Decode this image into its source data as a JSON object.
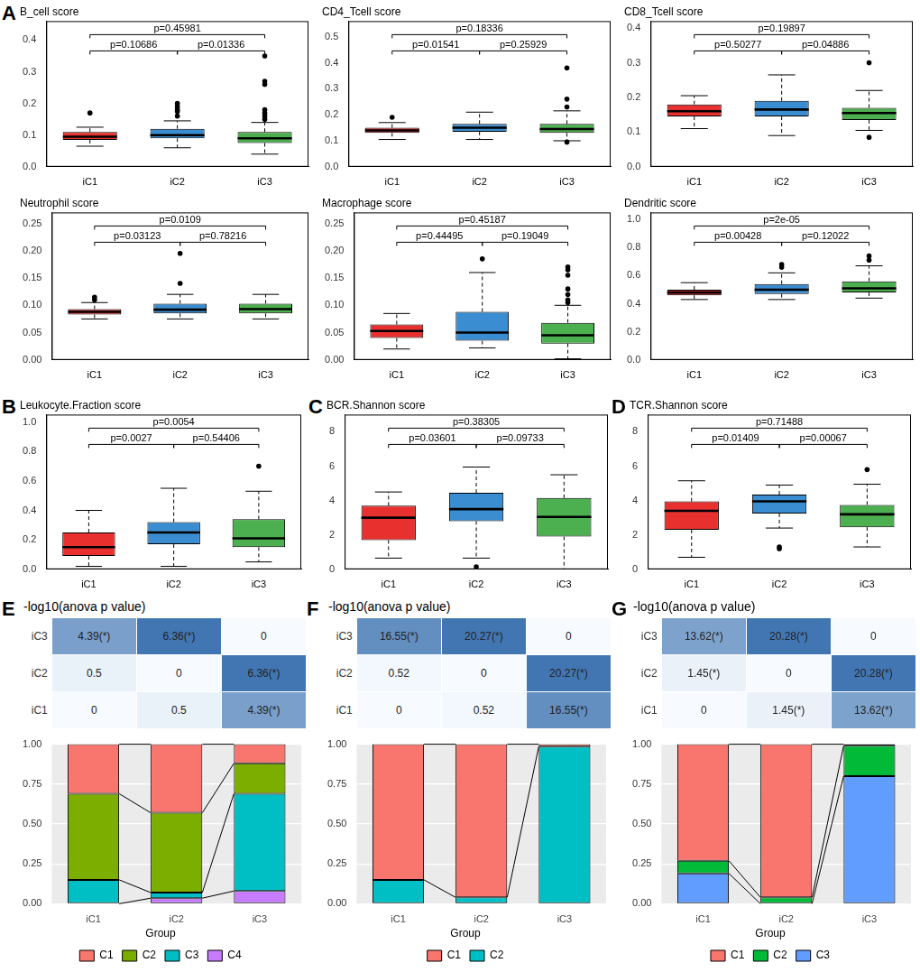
{
  "chart_data": [
    {
      "type": "boxplot",
      "panel": "A",
      "title": "B_cell score",
      "categories": [
        "iC1",
        "iC2",
        "iC3"
      ],
      "colors": [
        "#E8312F",
        "#3A8DD0",
        "#4CAF50"
      ],
      "boxes": [
        {
          "min": 0.065,
          "q1": 0.085,
          "median": 0.095,
          "q3": 0.11,
          "max": 0.125,
          "outliers": [
            0.17
          ]
        },
        {
          "min": 0.06,
          "q1": 0.09,
          "median": 0.1,
          "q3": 0.12,
          "max": 0.145,
          "outliers": [
            0.16,
            0.175,
            0.18,
            0.19,
            0.2
          ]
        },
        {
          "min": 0.04,
          "q1": 0.075,
          "median": 0.09,
          "q3": 0.11,
          "max": 0.14,
          "outliers": [
            0.15,
            0.16,
            0.17,
            0.18,
            0.26,
            0.27,
            0.35
          ]
        }
      ],
      "ylim": [
        0,
        0.46
      ],
      "yticks": [
        {
          "value": 0,
          "label": "0.0"
        },
        0.1,
        0.2,
        0.3,
        0.4
      ],
      "comparisons": [
        {
          "groups": [
            "iC1",
            "iC3"
          ],
          "label": "p=0.45981"
        },
        {
          "groups": [
            "iC1",
            "iC2"
          ],
          "label": "p=0.10686"
        },
        {
          "groups": [
            "iC2",
            "iC3"
          ],
          "label": "p=0.01336"
        }
      ]
    },
    {
      "type": "boxplot",
      "title": "CD4_Tcell score",
      "categories": [
        "iC1",
        "iC2",
        "iC3"
      ],
      "colors": [
        "#E8312F",
        "#3A8DD0",
        "#4CAF50"
      ],
      "boxes": [
        {
          "min": 0.105,
          "q1": 0.13,
          "median": 0.14,
          "q3": 0.15,
          "max": 0.17,
          "outliers": [
            0.19
          ]
        },
        {
          "min": 0.105,
          "q1": 0.135,
          "median": 0.15,
          "q3": 0.165,
          "max": 0.21,
          "outliers": []
        },
        {
          "min": 0.1,
          "q1": 0.13,
          "median": 0.145,
          "q3": 0.165,
          "max": 0.215,
          "outliers": [
            0.095,
            0.23,
            0.26,
            0.38
          ]
        }
      ],
      "ylim": [
        0,
        0.56
      ],
      "yticks": [
        {
          "value": 0,
          "label": "0.0"
        },
        0.1,
        0.2,
        0.3,
        0.4,
        0.5
      ],
      "comparisons": [
        {
          "groups": [
            "iC1",
            "iC3"
          ],
          "label": "p=0.18336"
        },
        {
          "groups": [
            "iC1",
            "iC2"
          ],
          "label": "p=0.01541"
        },
        {
          "groups": [
            "iC2",
            "iC3"
          ],
          "label": "p=0.25929"
        }
      ]
    },
    {
      "type": "boxplot",
      "title": "CD8_Tcell score",
      "categories": [
        "iC1",
        "iC2",
        "iC3"
      ],
      "colors": [
        "#E8312F",
        "#3A8DD0",
        "#4CAF50"
      ],
      "boxes": [
        {
          "min": 0.11,
          "q1": 0.145,
          "median": 0.16,
          "q3": 0.18,
          "max": 0.205,
          "outliers": []
        },
        {
          "min": 0.09,
          "q1": 0.145,
          "median": 0.165,
          "q3": 0.19,
          "max": 0.265,
          "outliers": []
        },
        {
          "min": 0.105,
          "q1": 0.135,
          "median": 0.155,
          "q3": 0.17,
          "max": 0.22,
          "outliers": [
            0.085,
            0.3
          ]
        }
      ],
      "ylim": [
        0,
        0.42
      ],
      "yticks": [
        {
          "value": 0,
          "label": "0.0"
        },
        0.1,
        0.2,
        0.3,
        0.4
      ],
      "comparisons": [
        {
          "groups": [
            "iC1",
            "iC3"
          ],
          "label": "p=0.19897"
        },
        {
          "groups": [
            "iC1",
            "iC2"
          ],
          "label": "p=0.50277"
        },
        {
          "groups": [
            "iC2",
            "iC3"
          ],
          "label": "p=0.04886"
        }
      ]
    },
    {
      "type": "boxplot",
      "title": "Neutrophil score",
      "categories": [
        "iC1",
        "iC2",
        "iC3"
      ],
      "colors": [
        "#E8312F",
        "#3A8DD0",
        "#4CAF50"
      ],
      "boxes": [
        {
          "min": 0.075,
          "q1": 0.083,
          "median": 0.088,
          "q3": 0.093,
          "max": 0.105,
          "outliers": [
            0.11,
            0.115
          ]
        },
        {
          "min": 0.075,
          "q1": 0.085,
          "median": 0.092,
          "q3": 0.103,
          "max": 0.12,
          "outliers": [
            0.14,
            0.195
          ]
        },
        {
          "min": 0.075,
          "q1": 0.085,
          "median": 0.093,
          "q3": 0.103,
          "max": 0.12,
          "outliers": []
        }
      ],
      "ylim": [
        0,
        0.27
      ],
      "yticks": [
        {
          "value": 0,
          "label": "0.00"
        },
        0.05,
        {
          "value": 0.1,
          "label": "0.10"
        },
        0.15,
        {
          "value": 0.2,
          "label": "0.20"
        },
        0.25
      ],
      "comparisons": [
        {
          "groups": [
            "iC1",
            "iC3"
          ],
          "label": "p=0.0109"
        },
        {
          "groups": [
            "iC1",
            "iC2"
          ],
          "label": "p=0.03123"
        },
        {
          "groups": [
            "iC2",
            "iC3"
          ],
          "label": "p=0.78216"
        }
      ]
    },
    {
      "type": "boxplot",
      "title": "Macrophage score",
      "categories": [
        "iC1",
        "iC2",
        "iC3"
      ],
      "colors": [
        "#E8312F",
        "#3A8DD0",
        "#4CAF50"
      ],
      "boxes": [
        {
          "min": 0.02,
          "q1": 0.04,
          "median": 0.053,
          "q3": 0.065,
          "max": 0.085,
          "outliers": []
        },
        {
          "min": 0.022,
          "q1": 0.035,
          "median": 0.05,
          "q3": 0.088,
          "max": 0.16,
          "outliers": [
            0.185
          ]
        },
        {
          "min": 0.002,
          "q1": 0.03,
          "median": 0.045,
          "q3": 0.068,
          "max": 0.1,
          "outliers": [
            0.105,
            0.11,
            0.12,
            0.13,
            0.155,
            0.165,
            0.17
          ]
        }
      ],
      "ylim": [
        0,
        0.27
      ],
      "yticks": [
        {
          "value": 0,
          "label": "0.00"
        },
        0.05,
        {
          "value": 0.1,
          "label": "0.10"
        },
        0.15,
        {
          "value": 0.2,
          "label": "0.20"
        },
        0.25
      ],
      "comparisons": [
        {
          "groups": [
            "iC1",
            "iC3"
          ],
          "label": "p=0.45187"
        },
        {
          "groups": [
            "iC1",
            "iC2"
          ],
          "label": "p=0.44495"
        },
        {
          "groups": [
            "iC2",
            "iC3"
          ],
          "label": "p=0.19049"
        }
      ]
    },
    {
      "type": "boxplot",
      "title": "Dendritic score",
      "categories": [
        "iC1",
        "iC2",
        "iC3"
      ],
      "colors": [
        "#E8312F",
        "#3A8DD0",
        "#4CAF50"
      ],
      "boxes": [
        {
          "min": 0.43,
          "q1": 0.46,
          "median": 0.48,
          "q3": 0.5,
          "max": 0.55,
          "outliers": []
        },
        {
          "min": 0.43,
          "q1": 0.47,
          "median": 0.5,
          "q3": 0.54,
          "max": 0.62,
          "outliers": [
            0.66,
            0.68
          ]
        },
        {
          "min": 0.44,
          "q1": 0.48,
          "median": 0.51,
          "q3": 0.56,
          "max": 0.67,
          "outliers": [
            0.71,
            0.74
          ]
        }
      ],
      "ylim": [
        0,
        1.05
      ],
      "yticks": [
        {
          "value": 0,
          "label": "0.0"
        },
        0.2,
        0.4,
        0.6,
        0.8,
        {
          "value": 1,
          "label": "1.0"
        }
      ],
      "comparisons": [
        {
          "groups": [
            "iC1",
            "iC3"
          ],
          "label": "p=2e-05"
        },
        {
          "groups": [
            "iC1",
            "iC2"
          ],
          "label": "p=0.00428"
        },
        {
          "groups": [
            "iC2",
            "iC3"
          ],
          "label": "p=0.12022"
        }
      ]
    },
    {
      "type": "boxplot",
      "panel": "B",
      "title": "Leukocyte.Fraction score",
      "categories": [
        "iC1",
        "iC2",
        "iC3"
      ],
      "colors": [
        "#E8312F",
        "#3A8DD0",
        "#4CAF50"
      ],
      "boxes": [
        {
          "min": 0.02,
          "q1": 0.09,
          "median": 0.15,
          "q3": 0.25,
          "max": 0.4,
          "outliers": []
        },
        {
          "min": 0.02,
          "q1": 0.17,
          "median": 0.25,
          "q3": 0.32,
          "max": 0.55,
          "outliers": []
        },
        {
          "min": 0.05,
          "q1": 0.15,
          "median": 0.21,
          "q3": 0.34,
          "max": 0.53,
          "outliers": [
            0.7
          ]
        }
      ],
      "ylim": [
        0,
        1.05
      ],
      "yticks": [
        {
          "value": 0,
          "label": "0.0"
        },
        0.2,
        0.4,
        0.6,
        0.8,
        {
          "value": 1,
          "label": "1.0"
        }
      ],
      "comparisons": [
        {
          "groups": [
            "iC1",
            "iC3"
          ],
          "label": "p=0.0054"
        },
        {
          "groups": [
            "iC1",
            "iC2"
          ],
          "label": "p=0.0027"
        },
        {
          "groups": [
            "iC2",
            "iC3"
          ],
          "label": "p=0.54406"
        }
      ]
    },
    {
      "type": "boxplot",
      "panel": "C",
      "title": "BCR.Shannon score",
      "categories": [
        "iC1",
        "iC2",
        "iC3"
      ],
      "colors": [
        "#E8312F",
        "#3A8DD0",
        "#4CAF50"
      ],
      "boxes": [
        {
          "min": 0.65,
          "q1": 1.7,
          "median": 3,
          "q3": 3.7,
          "max": 4.5,
          "outliers": []
        },
        {
          "min": 0.65,
          "q1": 2.8,
          "median": 3.5,
          "q3": 4.45,
          "max": 5.95,
          "outliers": [
            0.15
          ]
        },
        {
          "min": 0,
          "q1": 1.9,
          "median": 3.05,
          "q3": 4.15,
          "max": 5.5,
          "outliers": []
        }
      ],
      "ylim": [
        0,
        9
      ],
      "yticks": [
        0,
        2,
        4,
        6,
        8
      ],
      "comparisons": [
        {
          "groups": [
            "iC1",
            "iC3"
          ],
          "label": "p=0.38305"
        },
        {
          "groups": [
            "iC1",
            "iC2"
          ],
          "label": "p=0.03601"
        },
        {
          "groups": [
            "iC2",
            "iC3"
          ],
          "label": "p=0.09733"
        }
      ]
    },
    {
      "type": "boxplot",
      "panel": "D",
      "title": "TCR.Shannon score",
      "categories": [
        "iC1",
        "iC2",
        "iC3"
      ],
      "colors": [
        "#E8312F",
        "#3A8DD0",
        "#4CAF50"
      ],
      "boxes": [
        {
          "min": 0.7,
          "q1": 2.3,
          "median": 3.4,
          "q3": 3.95,
          "max": 5.15,
          "outliers": []
        },
        {
          "min": 2.4,
          "q1": 3.25,
          "median": 3.95,
          "q3": 4.35,
          "max": 4.9,
          "outliers": [
            1.2,
            1.3
          ]
        },
        {
          "min": 1.3,
          "q1": 2.45,
          "median": 3.2,
          "q3": 3.75,
          "max": 4.95,
          "outliers": [
            5.8
          ]
        }
      ],
      "ylim": [
        0,
        9
      ],
      "yticks": [
        0,
        2,
        4,
        6,
        8
      ],
      "comparisons": [
        {
          "groups": [
            "iC1",
            "iC3"
          ],
          "label": "p=0.71488"
        },
        {
          "groups": [
            "iC1",
            "iC2"
          ],
          "label": "p=0.01409"
        },
        {
          "groups": [
            "iC2",
            "iC3"
          ],
          "label": "p=0.00067"
        }
      ]
    },
    {
      "type": "heatmap",
      "panel": "E",
      "title": "-log10(anova p value)",
      "rows": [
        "iC3",
        "iC2",
        "iC1"
      ],
      "cells": [
        [
          4.39,
          6.36,
          0
        ],
        [
          0.5,
          0,
          6.36
        ],
        [
          0,
          0.5,
          4.39
        ]
      ],
      "value_labels": [
        [
          "4.39(*)",
          "6.36(*)",
          "0"
        ],
        [
          "0.5",
          "0",
          "6.36(*)"
        ],
        [
          "0",
          "0.5",
          "4.39(*)"
        ]
      ]
    },
    {
      "type": "bar",
      "stacked": true,
      "legend": "bottom",
      "legend_title": "Group",
      "categories": [
        "iC1",
        "iC2",
        "iC3"
      ],
      "series": [
        {
          "name": "C1",
          "color": "#F8766D",
          "values": [
            0.31,
            0.43,
            0.12
          ]
        },
        {
          "name": "C2",
          "color": "#7CAE00",
          "values": [
            0.54,
            0.5,
            0.19
          ]
        },
        {
          "name": "C3",
          "color": "#00BFC4",
          "values": [
            0.15,
            0.035,
            0.61
          ]
        },
        {
          "name": "C4",
          "color": "#C77CFF",
          "values": [
            0,
            0.035,
            0.08
          ]
        }
      ],
      "ylim": [
        0,
        1
      ],
      "grid": true,
      "yticks": [
        {
          "value": 0,
          "label": "0.00"
        },
        0.25,
        {
          "value": 0.5,
          "label": "0.50"
        },
        0.75,
        {
          "value": 1,
          "label": "1.00"
        }
      ]
    },
    {
      "type": "heatmap",
      "panel": "F",
      "title": "-log10(anova p value)",
      "rows": [
        "iC3",
        "iC2",
        "iC1"
      ],
      "cells": [
        [
          16.55,
          20.27,
          0
        ],
        [
          0.52,
          0,
          20.27
        ],
        [
          0,
          0.52,
          16.55
        ]
      ],
      "value_labels": [
        [
          "16.55(*)",
          "20.27(*)",
          "0"
        ],
        [
          "0.52",
          "0",
          "20.27(*)"
        ],
        [
          "0",
          "0.52",
          "16.55(*)"
        ]
      ]
    },
    {
      "type": "bar",
      "stacked": true,
      "legend": "bottom",
      "legend_title": "Group",
      "categories": [
        "iC1",
        "iC2",
        "iC3"
      ],
      "series": [
        {
          "name": "C1",
          "color": "#F8766D",
          "values": [
            0.85,
            0.96,
            0.015
          ]
        },
        {
          "name": "C2",
          "color": "#00BFC4",
          "values": [
            0.15,
            0.04,
            0.985
          ]
        }
      ],
      "ylim": [
        0,
        1
      ],
      "grid": true,
      "yticks": [
        {
          "value": 0,
          "label": "0.00"
        },
        0.25,
        {
          "value": 0.5,
          "label": "0.50"
        },
        0.75,
        {
          "value": 1,
          "label": "1.00"
        }
      ]
    },
    {
      "type": "heatmap",
      "panel": "G",
      "title": "-log10(anova p value)",
      "rows": [
        "iC3",
        "iC2",
        "iC1"
      ],
      "cells": [
        [
          13.62,
          20.28,
          0
        ],
        [
          1.45,
          0,
          20.28
        ],
        [
          0,
          1.45,
          13.62
        ]
      ],
      "value_labels": [
        [
          "13.62(*)",
          "20.28(*)",
          "0"
        ],
        [
          "1.45(*)",
          "0",
          "20.28(*)"
        ],
        [
          "0",
          "1.45(*)",
          "13.62(*)"
        ]
      ]
    },
    {
      "type": "bar",
      "stacked": true,
      "legend": "bottom",
      "legend_title": "Group",
      "categories": [
        "iC1",
        "iC2",
        "iC3"
      ],
      "series": [
        {
          "name": "C1",
          "color": "#F8766D",
          "values": [
            0.73,
            0.96,
            0.01
          ]
        },
        {
          "name": "C2",
          "color": "#00BA38",
          "values": [
            0.08,
            0.04,
            0.19
          ]
        },
        {
          "name": "C3",
          "color": "#619CFF",
          "values": [
            0.19,
            0,
            0.8
          ]
        }
      ],
      "ylim": [
        0,
        1
      ],
      "grid": true,
      "yticks": [
        {
          "value": 0,
          "label": "0.00"
        },
        0.25,
        {
          "value": 0.5,
          "label": "0.50"
        },
        0.75,
        {
          "value": 1,
          "label": "1.00"
        }
      ]
    }
  ]
}
